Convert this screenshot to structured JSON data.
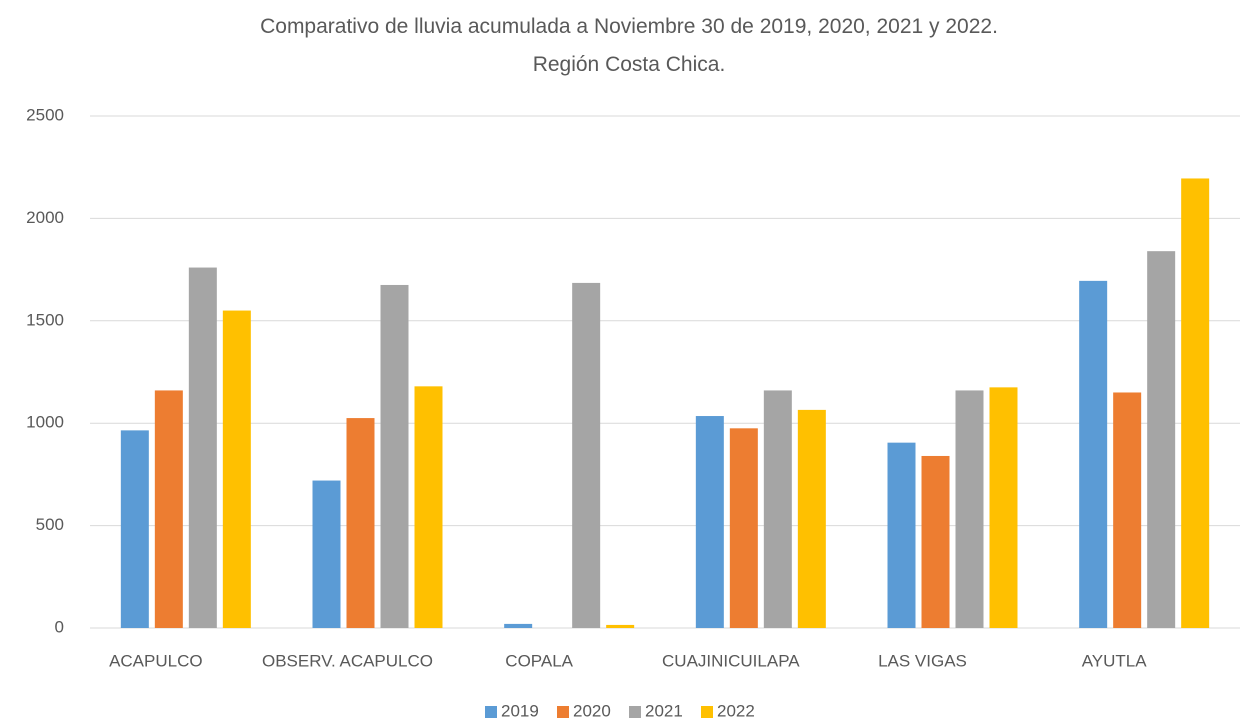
{
  "chart_data": {
    "type": "bar",
    "title": "Comparativo de lluvia acumulada a Noviembre 30 de 2019, 2020, 2021 y 2022. Región Costa Chica.",
    "categories": [
      "ACAPULCO",
      "OBSERV. ACAPULCO",
      "COPALA",
      "CUAJINICUILAPA",
      "LAS VIGAS",
      "AYUTLA"
    ],
    "series": [
      {
        "name": "2019",
        "color": "#5b9bd5",
        "values": [
          965,
          720,
          20,
          1035,
          905,
          1695
        ]
      },
      {
        "name": "2020",
        "color": "#ed7d31",
        "values": [
          1160,
          1025,
          0,
          975,
          840,
          1150
        ]
      },
      {
        "name": "2021",
        "color": "#a5a5a5",
        "values": [
          1760,
          1675,
          1685,
          1160,
          1160,
          1840
        ]
      },
      {
        "name": "2022",
        "color": "#ffc000",
        "values": [
          1550,
          1180,
          15,
          1065,
          1175,
          2195
        ]
      }
    ],
    "ylim": [
      0,
      2500
    ],
    "yticks": [
      0,
      500,
      1000,
      1500,
      2000,
      2500
    ],
    "grid": true,
    "legend": "bottom"
  }
}
